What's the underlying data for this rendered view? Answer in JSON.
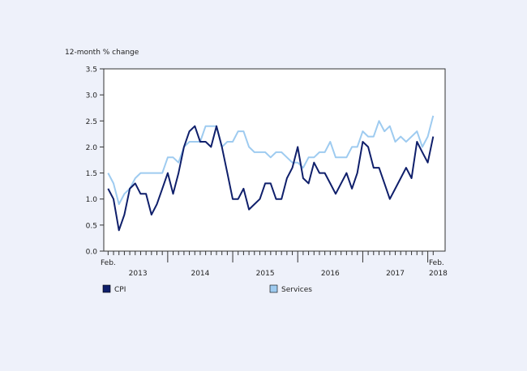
{
  "chart_data": {
    "type": "line",
    "ylabel": "12-month % change",
    "ylim": [
      0,
      3.5
    ],
    "y_ticks": [
      "0.0",
      "0.5",
      "1.0",
      "1.5",
      "2.0",
      "2.5",
      "3.0",
      "3.5"
    ],
    "x_start_label": "Feb.",
    "x_end_label_top": "Feb.",
    "x_end_label_bottom": "2018",
    "year_labels": [
      "2013",
      "2014",
      "2015",
      "2016",
      "2017"
    ],
    "months_count": 61,
    "series": [
      {
        "name": "CPI",
        "color": "#0f1f6b",
        "values": [
          1.2,
          1.0,
          0.4,
          0.7,
          1.2,
          1.3,
          1.1,
          1.1,
          0.7,
          0.9,
          1.2,
          1.5,
          1.1,
          1.5,
          2.0,
          2.3,
          2.4,
          2.1,
          2.1,
          2.0,
          2.4,
          2.0,
          1.5,
          1.0,
          1.0,
          1.2,
          0.8,
          0.9,
          1.0,
          1.3,
          1.3,
          1.0,
          1.0,
          1.4,
          1.6,
          2.0,
          1.4,
          1.3,
          1.7,
          1.5,
          1.5,
          1.3,
          1.1,
          1.3,
          1.5,
          1.2,
          1.5,
          2.1,
          2.0,
          1.6,
          1.6,
          1.3,
          1.0,
          1.2,
          1.4,
          1.6,
          1.4,
          2.1,
          1.9,
          1.7,
          2.2
        ]
      },
      {
        "name": "Services",
        "color": "#9ecbf0",
        "values": [
          1.5,
          1.3,
          0.9,
          1.1,
          1.2,
          1.4,
          1.5,
          1.5,
          1.5,
          1.5,
          1.5,
          1.8,
          1.8,
          1.7,
          2.0,
          2.1,
          2.1,
          2.1,
          2.4,
          2.4,
          2.4,
          2.0,
          2.1,
          2.1,
          2.3,
          2.3,
          2.0,
          1.9,
          1.9,
          1.9,
          1.8,
          1.9,
          1.9,
          1.8,
          1.7,
          1.7,
          1.6,
          1.8,
          1.8,
          1.9,
          1.9,
          2.1,
          1.8,
          1.8,
          1.8,
          2.0,
          2.0,
          2.3,
          2.2,
          2.2,
          2.5,
          2.3,
          2.4,
          2.1,
          2.2,
          2.1,
          2.2,
          2.3,
          2.0,
          2.2,
          2.6
        ]
      }
    ]
  }
}
